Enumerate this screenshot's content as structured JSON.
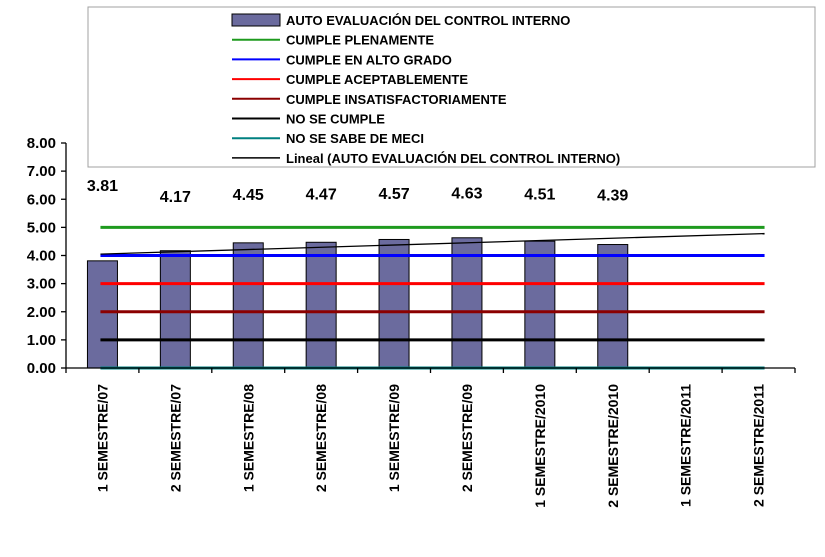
{
  "chart_data": {
    "type": "bar",
    "categories": [
      "1 SEMESTRE/07",
      "2 SEMESTRE/07",
      "1 SEMESTRE/08",
      "2 SEMESTRE/08",
      "1 SEMESTRE/09",
      "2 SEMESTRE/09",
      "1 SEMESTRE/2010",
      "2 SEMESTRE/2010",
      "1 SEMESTRE/2011",
      "2 SEMESTRE/2011"
    ],
    "series": [
      {
        "name": "AUTO EVALUACIÓN DEL CONTROL INTERNO",
        "type": "bar",
        "color": "#6b6b9e",
        "values": [
          3.81,
          4.17,
          4.45,
          4.47,
          4.57,
          4.63,
          4.51,
          4.39,
          null,
          null
        ]
      },
      {
        "name": "CUMPLE PLENAMENTE",
        "type": "line",
        "color": "#1e9a1e",
        "values": [
          5,
          5,
          5,
          5,
          5,
          5,
          5,
          5,
          5,
          5
        ]
      },
      {
        "name": "CUMPLE EN ALTO GRADO",
        "type": "line",
        "color": "#0000ff",
        "values": [
          4,
          4,
          4,
          4,
          4,
          4,
          4,
          4,
          4,
          4
        ]
      },
      {
        "name": "CUMPLE ACEPTABLEMENTE",
        "type": "line",
        "color": "#ff0000",
        "values": [
          3,
          3,
          3,
          3,
          3,
          3,
          3,
          3,
          3,
          3
        ]
      },
      {
        "name": "CUMPLE INSATISFACTORIAMENTE",
        "type": "line",
        "color": "#8b0000",
        "values": [
          2,
          2,
          2,
          2,
          2,
          2,
          2,
          2,
          2,
          2
        ]
      },
      {
        "name": "NO SE CUMPLE",
        "type": "line",
        "color": "#000000",
        "values": [
          1,
          1,
          1,
          1,
          1,
          1,
          1,
          1,
          1,
          1
        ]
      },
      {
        "name": "NO SE SABE DE MECI",
        "type": "line",
        "color": "#008080",
        "values": [
          0,
          0,
          0,
          0,
          0,
          0,
          0,
          0,
          0,
          0
        ]
      },
      {
        "name": "Lineal (AUTO EVALUACIÓN DEL CONTROL INTERNO)",
        "type": "trendline",
        "color": "#000000",
        "start": 4.05,
        "end": 4.78
      }
    ],
    "data_labels": [
      "3.81",
      "4.17",
      "4.45",
      "4.47",
      "4.57",
      "4.63",
      "4.51",
      "4.39"
    ],
    "y_ticks": [
      "0.00",
      "1.00",
      "2.00",
      "3.00",
      "4.00",
      "5.00",
      "6.00",
      "7.00",
      "8.00"
    ],
    "ylim": [
      0,
      8
    ],
    "grid": false,
    "legend_position": "top"
  }
}
